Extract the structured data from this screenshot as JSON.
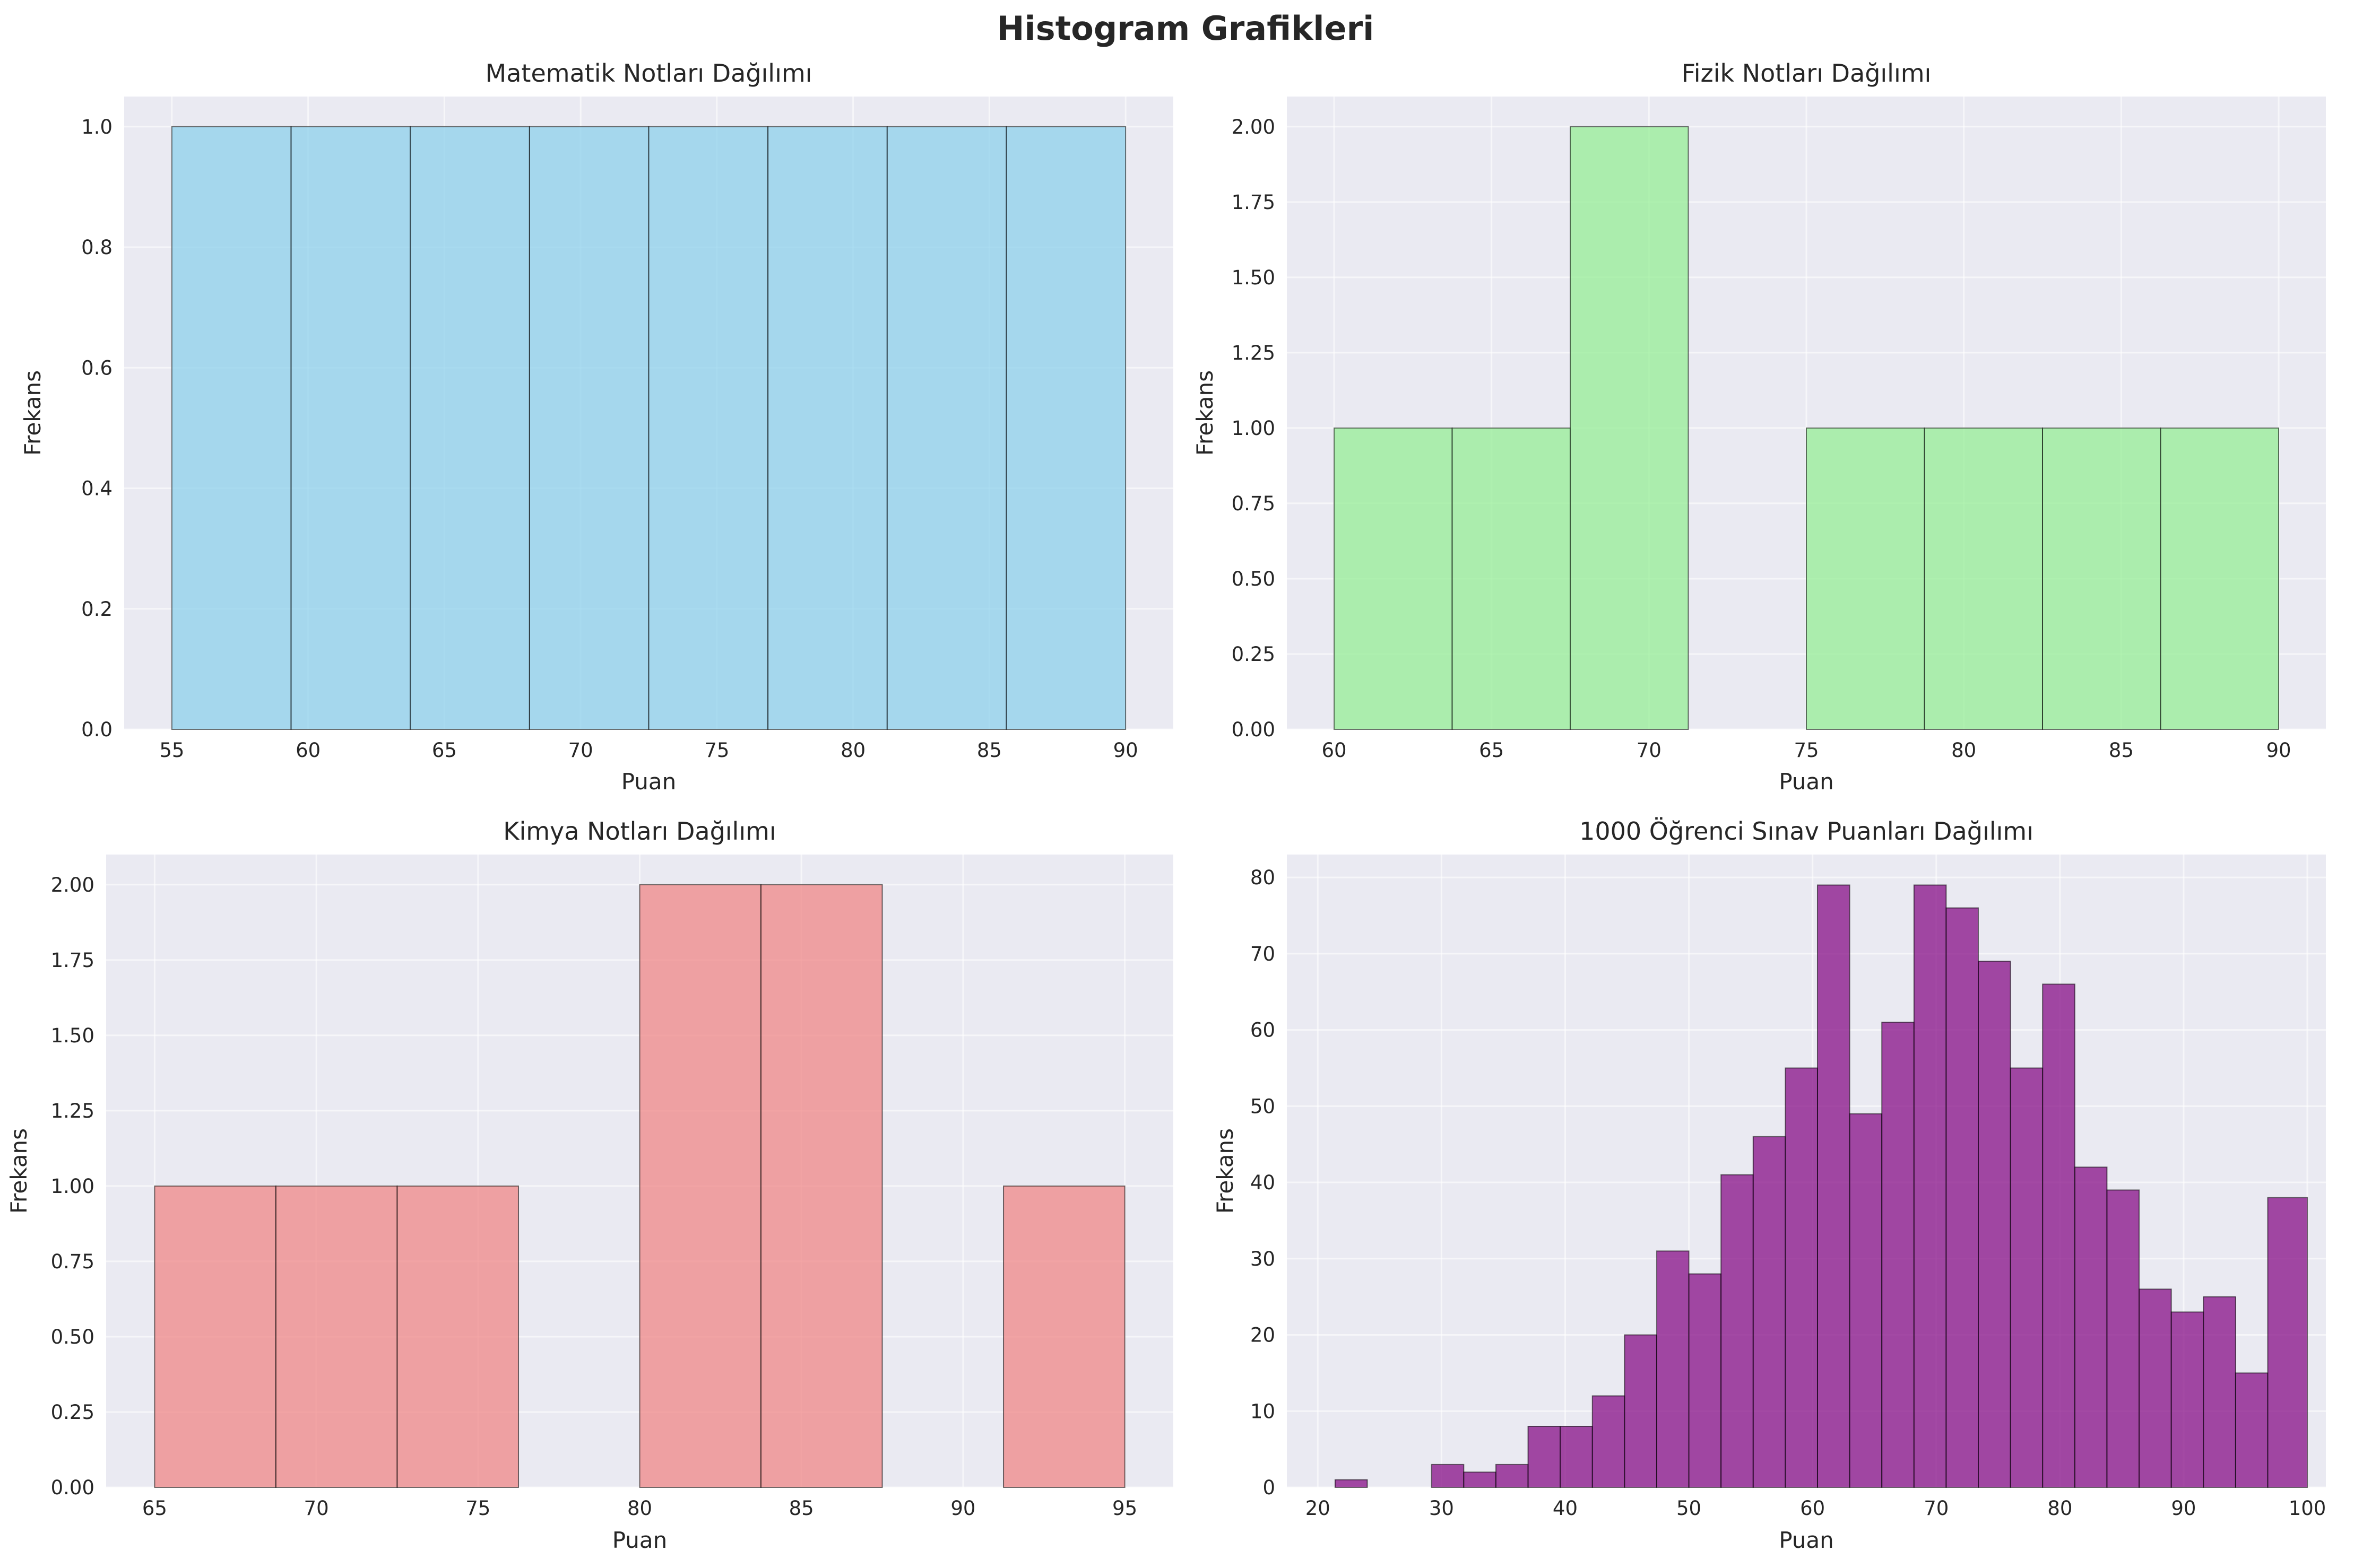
{
  "figure": {
    "title": "Histogram Grafikleri"
  },
  "chart_data": [
    {
      "type": "bar",
      "title": "Matematik Notları Dağılımı",
      "xlabel": "Puan",
      "ylabel": "Frekans",
      "color": "#87ceeb",
      "bin_edges": [
        55,
        59.375,
        63.75,
        68.125,
        72.5,
        76.875,
        81.25,
        85.625,
        90
      ],
      "values": [
        1,
        1,
        1,
        1,
        1,
        1,
        1,
        1
      ],
      "xlim": [
        53.25,
        91.75
      ],
      "ylim": [
        0,
        1.05
      ],
      "xticks": [
        55,
        60,
        65,
        70,
        75,
        80,
        85,
        90
      ],
      "yticks": [
        "0.0",
        "0.2",
        "0.4",
        "0.6",
        "0.8",
        "1.0"
      ],
      "grid": true
    },
    {
      "type": "bar",
      "title": "Fizik Notları Dağılımı",
      "xlabel": "Puan",
      "ylabel": "Frekans",
      "color": "#90ee90",
      "bin_edges": [
        60,
        63.75,
        67.5,
        71.25,
        75,
        78.75,
        82.5,
        86.25,
        90
      ],
      "values": [
        1,
        1,
        2,
        0,
        1,
        1,
        1,
        1
      ],
      "xlim": [
        58.5,
        91.5
      ],
      "ylim": [
        0,
        2.1
      ],
      "xticks": [
        60,
        65,
        70,
        75,
        80,
        85,
        90
      ],
      "yticks": [
        "0.00",
        "0.25",
        "0.50",
        "0.75",
        "1.00",
        "1.25",
        "1.50",
        "1.75",
        "2.00"
      ],
      "grid": true
    },
    {
      "type": "bar",
      "title": "Kimya Notları Dağılımı",
      "xlabel": "Puan",
      "ylabel": "Frekans",
      "color": "#f08080",
      "bin_edges": [
        65,
        68.75,
        72.5,
        76.25,
        80,
        83.75,
        87.5,
        91.25,
        95
      ],
      "values": [
        1,
        1,
        1,
        0,
        2,
        2,
        0,
        1
      ],
      "xlim": [
        63.5,
        96.5
      ],
      "ylim": [
        0,
        2.1
      ],
      "xticks": [
        65,
        70,
        75,
        80,
        85,
        90,
        95
      ],
      "yticks": [
        "0.00",
        "0.25",
        "0.50",
        "0.75",
        "1.00",
        "1.25",
        "1.50",
        "1.75",
        "2.00"
      ],
      "grid": true
    },
    {
      "type": "bar",
      "title": "1000 Öğrenci Sınav Puanları Dağılımı",
      "xlabel": "Puan",
      "ylabel": "Frekans",
      "color": "#800080",
      "bin_edges": [
        21.4,
        24.0,
        26.6,
        29.2,
        31.8,
        34.4,
        37.0,
        39.6,
        42.2,
        44.8,
        47.4,
        50.0,
        52.6,
        55.2,
        57.8,
        60.4,
        63.0,
        65.6,
        68.2,
        70.8,
        73.4,
        76.0,
        78.6,
        81.2,
        83.8,
        86.4,
        89.0,
        91.6,
        94.2,
        96.8,
        100.0
      ],
      "values": [
        1,
        0,
        0,
        3,
        2,
        3,
        8,
        8,
        12,
        20,
        31,
        28,
        41,
        46,
        55,
        79,
        49,
        61,
        79,
        76,
        69,
        55,
        66,
        42,
        39,
        26,
        23,
        25,
        15,
        38
      ],
      "xlim": [
        17.5,
        101.5
      ],
      "ylim": [
        0,
        83
      ],
      "xticks": [
        20,
        30,
        40,
        50,
        60,
        70,
        80,
        90,
        100
      ],
      "yticks": [
        "0",
        "10",
        "20",
        "30",
        "40",
        "50",
        "60",
        "70",
        "80"
      ],
      "grid": true
    }
  ]
}
